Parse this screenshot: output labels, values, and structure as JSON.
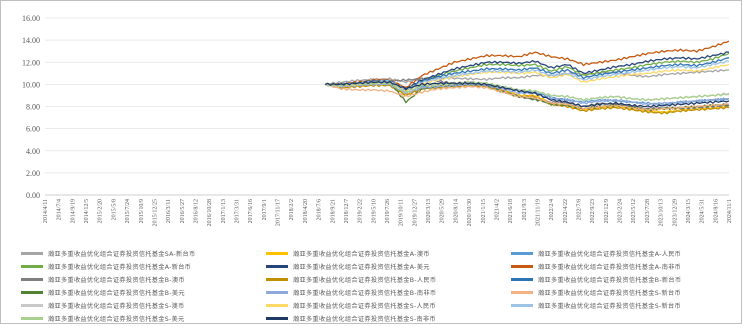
{
  "chart_data": {
    "type": "line",
    "title": "",
    "xlabel": "",
    "ylabel": "",
    "ylim": [
      0,
      16
    ],
    "yticks": [
      "0.00",
      "2.00",
      "4.00",
      "6.00",
      "8.00",
      "10.00",
      "12.00",
      "14.00",
      "16.00"
    ],
    "grid": "horizontal",
    "legend_position": "bottom",
    "x_start": "2014-4-11",
    "x_end": "2024-12-31",
    "series_start": "2018-9-1",
    "xticks": [
      "2014/4/11",
      "2014/7/4",
      "2014/9/19",
      "2014/12/5",
      "2015/2/20",
      "2015/5/8",
      "2015/7/24",
      "2015/10/9",
      "2015/12/25",
      "2016/3/11",
      "2016/5/27",
      "2016/8/12",
      "2016/10/28",
      "2017/1/13",
      "2017/3/31",
      "2017/6/16",
      "2017/9/1",
      "2017/11/17",
      "2018/2/2",
      "2018/4/20",
      "2018/7/6",
      "2018/9/21",
      "2018/12/7",
      "2019/2/22",
      "2019/5/10",
      "2019/7/26",
      "2019/10/11",
      "2019/12/27",
      "2020/3/13",
      "2020/5/29",
      "2020/8/14",
      "2020/10/30",
      "2021/1/15",
      "2021/4/2",
      "2021/6/18",
      "2021/9/3",
      "2021/11/19",
      "2022/2/4",
      "2022/4/22",
      "2022/7/8",
      "2022/9/23",
      "2022/12/9",
      "2023/2/24",
      "2023/5/12",
      "2023/7/28",
      "2023/10/13",
      "2023/12/29",
      "2024/3/15",
      "2024/5/31",
      "2024/8/16",
      "2024/11/1"
    ],
    "series": [
      {
        "name": "瀚亚多重收益优化组合证券投资信托基金SA-新台币",
        "color": "#a5a5a5",
        "values": [
          10.0,
          10.2,
          10.35,
          10.45,
          10.5,
          10.2,
          10.5,
          10.6,
          10.55,
          10.5,
          10.45,
          10.6,
          10.6,
          10.8,
          10.8,
          11.0,
          10.9,
          11.0,
          11.1,
          10.8,
          10.7,
          10.9,
          11.0,
          11.1,
          11.2,
          11.3
        ]
      },
      {
        "name": "瀚亚多重收益优化组合证券投资信托基金A-澳币",
        "color": "#ffc000",
        "values": [
          10.0,
          9.8,
          9.9,
          10.0,
          9.95,
          9.1,
          9.7,
          9.8,
          9.9,
          10.0,
          9.9,
          9.5,
          9.0,
          9.0,
          8.3,
          8.1,
          7.7,
          7.9,
          8.0,
          7.8,
          7.6,
          7.5,
          7.7,
          7.8,
          7.9,
          8.0
        ]
      },
      {
        "name": "瀚亚多重收益优化组合证券投资信托基金A-人民币",
        "color": "#5b9bd5",
        "values": [
          10.0,
          9.9,
          10.1,
          10.2,
          10.2,
          9.3,
          9.8,
          10.0,
          10.1,
          10.2,
          10.0,
          9.7,
          9.4,
          9.3,
          8.8,
          8.6,
          8.4,
          8.6,
          8.5,
          8.4,
          8.3,
          8.2,
          8.4,
          8.5,
          8.6,
          8.7
        ]
      },
      {
        "name": "瀚亚多重收益优化组合证券投资信托基金A-新台币",
        "color": "#70ad47",
        "values": [
          10.0,
          10.0,
          10.1,
          10.3,
          10.3,
          9.4,
          10.3,
          10.8,
          11.2,
          11.5,
          11.8,
          11.8,
          11.7,
          11.8,
          11.2,
          11.6,
          10.8,
          11.1,
          11.3,
          11.5,
          11.8,
          12.0,
          12.1,
          12.0,
          12.3,
          12.8
        ]
      },
      {
        "name": "瀚亚多重收益优化组合证券投资信托基金A-美元",
        "color": "#264478",
        "values": [
          10.0,
          10.0,
          10.1,
          10.3,
          10.3,
          9.6,
          10.4,
          10.9,
          11.4,
          11.7,
          12.0,
          12.0,
          11.9,
          12.1,
          11.5,
          11.8,
          11.0,
          11.3,
          11.6,
          11.8,
          12.1,
          12.3,
          12.4,
          12.3,
          12.6,
          12.9
        ]
      },
      {
        "name": "瀚亚多重收益优化组合证券投资信托基金A-南非币",
        "color": "#c55a11",
        "values": [
          10.0,
          10.0,
          10.2,
          10.4,
          10.4,
          9.7,
          10.8,
          11.4,
          12.0,
          12.3,
          12.6,
          12.6,
          12.5,
          12.9,
          12.5,
          12.3,
          11.8,
          12.0,
          12.2,
          12.5,
          12.8,
          13.0,
          13.1,
          13.0,
          13.4,
          13.9
        ]
      },
      {
        "name": "瀚亚多重收益优化组合证券投资信托基金B-澳币",
        "color": "#7f7f7f",
        "values": [
          10.0,
          10.0,
          10.1,
          10.3,
          10.3,
          10.4,
          10.5,
          10.3,
          10.1,
          10.2,
          10.0,
          9.4,
          8.9,
          8.6,
          8.4,
          8.3,
          8.0,
          8.3,
          8.2,
          8.0,
          7.8,
          7.9,
          7.8,
          7.9,
          8.0,
          8.1
        ]
      },
      {
        "name": "瀚亚多重收益优化组合证券投资信托基金B-人民币",
        "color": "#bf9000",
        "values": [
          10.0,
          9.7,
          9.8,
          9.9,
          9.9,
          9.0,
          9.6,
          9.7,
          9.8,
          9.9,
          9.8,
          9.4,
          8.9,
          8.9,
          8.2,
          8.0,
          7.6,
          7.8,
          7.9,
          7.7,
          7.5,
          7.4,
          7.6,
          7.7,
          7.8,
          7.9
        ]
      },
      {
        "name": "瀚亚多重收益优化组合证券投资信托基金B-新台币",
        "color": "#2e75b6",
        "values": [
          10.0,
          9.9,
          10.1,
          10.3,
          10.3,
          9.5,
          10.3,
          10.7,
          11.0,
          11.2,
          11.4,
          11.4,
          11.3,
          11.5,
          11.0,
          11.3,
          10.6,
          10.9,
          11.1,
          11.3,
          11.5,
          11.7,
          11.8,
          11.7,
          12.0,
          12.4
        ]
      },
      {
        "name": "瀚亚多重收益优化组合证券投资信托基金B-美元",
        "color": "#548235",
        "values": [
          10.0,
          10.0,
          10.1,
          10.2,
          10.2,
          8.4,
          9.6,
          9.8,
          9.9,
          10.0,
          9.9,
          9.3,
          8.9,
          8.7,
          8.2,
          8.1,
          7.8,
          8.0,
          8.1,
          7.9,
          7.7,
          7.8,
          7.9,
          8.0,
          8.1,
          8.2
        ]
      },
      {
        "name": "瀚亚多重收益优化组合证券投资信托基金B-南非币",
        "color": "#8ea9db",
        "values": [
          10.0,
          9.8,
          9.9,
          10.0,
          10.0,
          9.2,
          9.7,
          9.8,
          9.9,
          10.0,
          9.9,
          9.6,
          9.2,
          9.2,
          8.7,
          8.6,
          8.3,
          8.5,
          8.6,
          8.4,
          8.2,
          8.3,
          8.4,
          8.5,
          8.6,
          8.7
        ]
      },
      {
        "name": "瀚亚多重收益优化组合证券投资信托基金S-新台币",
        "color": "#f4b183",
        "values": [
          10.0,
          9.6,
          9.5,
          9.5,
          9.4,
          8.9,
          9.3,
          9.6,
          9.7,
          9.8,
          9.7,
          9.3,
          8.9,
          8.8,
          8.3,
          8.2,
          7.8,
          8.0,
          8.1,
          7.9,
          7.7,
          7.8,
          7.9,
          8.0,
          8.1,
          8.2
        ]
      },
      {
        "name": "瀚亚多重收益优化组合证券投资信托基金S-澳币",
        "color": "#c9c9c9",
        "values": [
          10.0,
          9.9,
          10.0,
          10.1,
          10.1,
          9.3,
          9.9,
          10.0,
          10.1,
          10.2,
          10.1,
          9.8,
          9.5,
          9.4,
          9.0,
          8.9,
          8.6,
          8.8,
          8.9,
          8.7,
          8.6,
          8.7,
          8.8,
          8.9,
          9.0,
          9.2
        ]
      },
      {
        "name": "瀚亚多重收益优化组合证券投资信托基金S-人民币",
        "color": "#ffd966",
        "values": [
          10.0,
          9.9,
          10.0,
          10.2,
          10.2,
          9.4,
          10.1,
          10.4,
          10.7,
          10.9,
          11.1,
          11.1,
          11.0,
          11.1,
          10.6,
          10.9,
          10.2,
          10.5,
          10.7,
          10.9,
          11.0,
          11.2,
          11.3,
          11.2,
          11.5,
          11.8
        ]
      },
      {
        "name": "瀚亚多重收益优化组合证券投资信托基金S-新台币",
        "color": "#9dc3e6",
        "values": [
          10.0,
          9.9,
          10.1,
          10.2,
          10.3,
          9.5,
          10.2,
          10.5,
          10.8,
          11.0,
          11.2,
          11.2,
          11.1,
          11.3,
          10.8,
          11.0,
          10.4,
          10.7,
          10.9,
          11.1,
          11.3,
          11.5,
          11.6,
          11.5,
          11.8,
          12.1
        ]
      },
      {
        "name": "瀚亚多重收益优化组合证券投资信托基金S-美元",
        "color": "#a9d18e",
        "values": [
          10.0,
          9.9,
          10.0,
          10.1,
          10.1,
          9.3,
          9.9,
          10.0,
          10.1,
          10.2,
          10.1,
          9.8,
          9.5,
          9.4,
          9.0,
          8.9,
          8.6,
          8.8,
          8.9,
          8.7,
          8.6,
          8.7,
          8.8,
          8.9,
          9.0,
          9.1
        ]
      },
      {
        "name": "瀚亚多重收益优化组合证券投资信托基金S-南非币",
        "color": "#203864",
        "values": [
          10.0,
          10.0,
          10.1,
          10.2,
          10.2,
          9.6,
          10.0,
          10.1,
          10.1,
          10.1,
          10.0,
          9.7,
          9.4,
          9.2,
          8.6,
          8.4,
          8.0,
          8.2,
          8.3,
          8.1,
          8.0,
          8.1,
          8.2,
          8.3,
          8.4,
          8.5
        ]
      }
    ]
  }
}
